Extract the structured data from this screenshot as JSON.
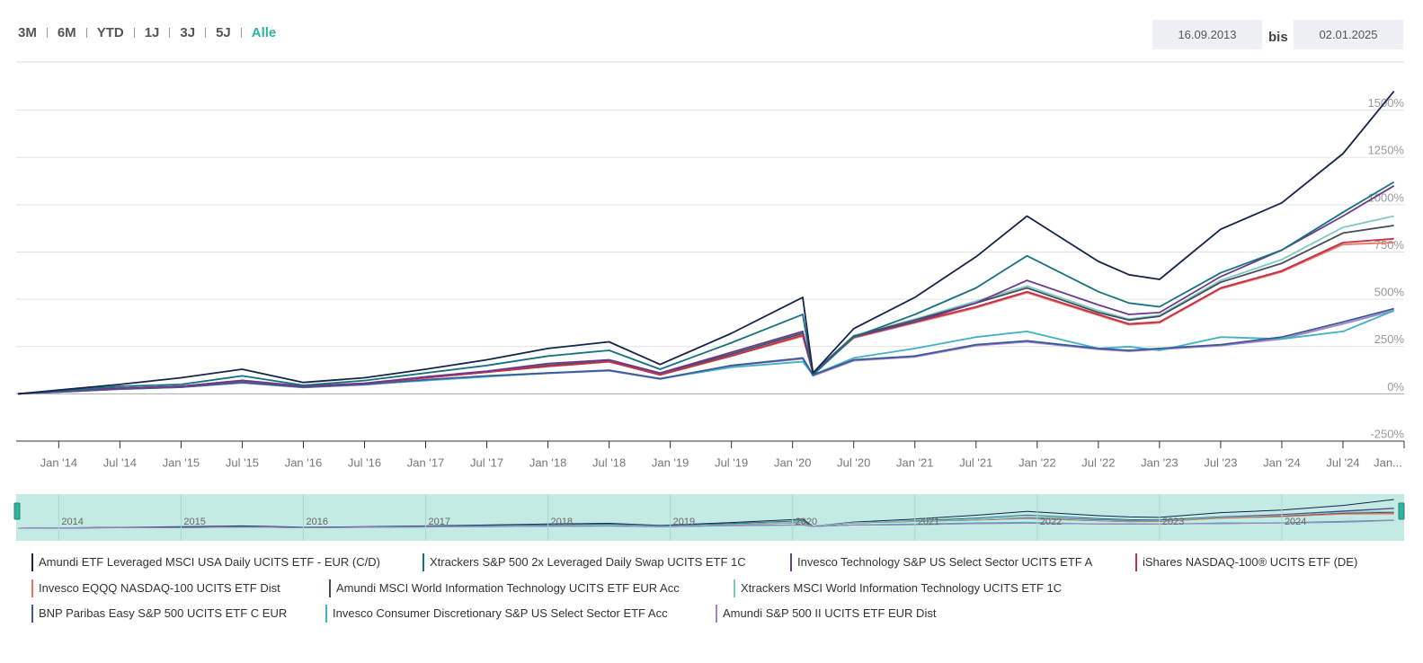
{
  "range_buttons": [
    "3M",
    "6M",
    "YTD",
    "1J",
    "3J",
    "5J",
    "Alle"
  ],
  "active_button": "Alle",
  "date_from": "16.09.2013",
  "date_separator": "bis",
  "date_to": "02.01.2025",
  "chart_data": {
    "type": "line",
    "x": [
      "2013-09",
      "2014-01",
      "2014-07",
      "2015-01",
      "2015-07",
      "2016-01",
      "2016-07",
      "2017-01",
      "2017-07",
      "2018-01",
      "2018-07",
      "2018-12",
      "2019-07",
      "2020-02",
      "2020-03",
      "2020-07",
      "2021-01",
      "2021-07",
      "2021-12",
      "2022-07",
      "2022-10",
      "2023-01",
      "2023-07",
      "2024-01",
      "2024-07",
      "2024-12"
    ],
    "xlim": [
      "2013-09",
      "2025-01"
    ],
    "xticks": [
      {
        "value": "2014-01",
        "label": "Jan '14"
      },
      {
        "value": "2014-07",
        "label": "Jul '14"
      },
      {
        "value": "2015-01",
        "label": "Jan '15"
      },
      {
        "value": "2015-07",
        "label": "Jul '15"
      },
      {
        "value": "2016-01",
        "label": "Jan '16"
      },
      {
        "value": "2016-07",
        "label": "Jul '16"
      },
      {
        "value": "2017-01",
        "label": "Jan '17"
      },
      {
        "value": "2017-07",
        "label": "Jul '17"
      },
      {
        "value": "2018-01",
        "label": "Jan '18"
      },
      {
        "value": "2018-07",
        "label": "Jul '18"
      },
      {
        "value": "2019-01",
        "label": "Jan '19"
      },
      {
        "value": "2019-07",
        "label": "Jul '19"
      },
      {
        "value": "2020-01",
        "label": "Jan '20"
      },
      {
        "value": "2020-07",
        "label": "Jul '20"
      },
      {
        "value": "2021-01",
        "label": "Jan '21"
      },
      {
        "value": "2021-07",
        "label": "Jul '21"
      },
      {
        "value": "2022-01",
        "label": "Jan '22"
      },
      {
        "value": "2022-07",
        "label": "Jul '22"
      },
      {
        "value": "2023-01",
        "label": "Jan '23"
      },
      {
        "value": "2023-07",
        "label": "Jul '23"
      },
      {
        "value": "2024-01",
        "label": "Jan '24"
      },
      {
        "value": "2024-07",
        "label": "Jul '24"
      },
      {
        "value": "2025-01",
        "label": "Jan..."
      }
    ],
    "ylim": [
      -250,
      1750
    ],
    "yticks": [
      {
        "value": -250,
        "label": "-250%"
      },
      {
        "value": 0,
        "label": "0%"
      },
      {
        "value": 250,
        "label": "250%"
      },
      {
        "value": 500,
        "label": "500%"
      },
      {
        "value": 750,
        "label": "750%"
      },
      {
        "value": 1000,
        "label": "1000%"
      },
      {
        "value": 1250,
        "label": "1250%"
      },
      {
        "value": 1500,
        "label": "1500%"
      }
    ],
    "grid": true,
    "navigator_labels": [
      "2014",
      "2015",
      "2016",
      "2017",
      "2018",
      "2019",
      "2020",
      "2021",
      "2022",
      "2023",
      "2024"
    ],
    "series": [
      {
        "name": "Amundi ETF Leveraged MSCI USA Daily UCITS ETF - EUR (C/D)",
        "color": "#15244a",
        "values": [
          0,
          20,
          50,
          85,
          130,
          60,
          85,
          130,
          180,
          240,
          275,
          155,
          320,
          510,
          110,
          345,
          510,
          725,
          940,
          700,
          630,
          605,
          870,
          1010,
          1270,
          1600
        ]
      },
      {
        "name": "Xtrackers S&P 500 2x Leveraged Daily Swap UCITS ETF 1C",
        "color": "#18707f",
        "values": [
          0,
          15,
          40,
          50,
          95,
          45,
          70,
          110,
          150,
          200,
          230,
          130,
          270,
          420,
          100,
          300,
          420,
          560,
          730,
          540,
          480,
          460,
          640,
          760,
          960,
          1120
        ]
      },
      {
        "name": "Invesco Technology S&P US Select Sector UCITS ETF A",
        "color": "#6b3a8c",
        "values": [
          0,
          12,
          30,
          40,
          70,
          40,
          55,
          90,
          120,
          160,
          180,
          110,
          220,
          330,
          110,
          300,
          380,
          480,
          600,
          470,
          420,
          430,
          620,
          760,
          940,
          1100
        ]
      },
      {
        "name": "iShares NASDAQ-100® UCITS ETF (DE)",
        "color": "#c2304c",
        "values": [
          0,
          12,
          30,
          40,
          70,
          40,
          55,
          85,
          115,
          145,
          170,
          100,
          200,
          310,
          110,
          300,
          380,
          460,
          540,
          420,
          370,
          380,
          560,
          650,
          800,
          820
        ]
      },
      {
        "name": "Invesco EQQQ NASDAQ-100 UCITS ETF Dist",
        "color": "#e8745a",
        "values": [
          0,
          12,
          30,
          40,
          70,
          40,
          55,
          85,
          115,
          145,
          170,
          100,
          200,
          305,
          110,
          295,
          375,
          455,
          535,
          415,
          365,
          375,
          555,
          645,
          790,
          800
        ]
      },
      {
        "name": "Amundi MSCI World Information Technology UCITS ETF EUR Acc",
        "color": "#454d5c",
        "values": [
          0,
          12,
          30,
          40,
          70,
          40,
          55,
          85,
          115,
          150,
          175,
          105,
          210,
          320,
          110,
          305,
          390,
          480,
          560,
          430,
          390,
          410,
          590,
          690,
          850,
          890
        ]
      },
      {
        "name": "Xtrackers MSCI World Information Technology UCITS ETF 1C",
        "color": "#7fcac0",
        "values": [
          0,
          12,
          30,
          40,
          72,
          42,
          57,
          88,
          118,
          152,
          178,
          108,
          212,
          325,
          112,
          308,
          395,
          490,
          570,
          440,
          395,
          415,
          600,
          710,
          880,
          940
        ]
      },
      {
        "name": "BNP Paribas Easy S&P 500 UCITS ETF C EUR",
        "color": "#3a5a9a",
        "values": [
          0,
          10,
          25,
          35,
          60,
          35,
          50,
          75,
          95,
          110,
          125,
          80,
          150,
          190,
          100,
          180,
          200,
          260,
          280,
          240,
          230,
          240,
          260,
          300,
          380,
          450
        ]
      },
      {
        "name": "Invesco Consumer Discretionary S&P US Select Sector ETF Acc",
        "color": "#42b1c2",
        "values": [
          0,
          10,
          25,
          35,
          60,
          35,
          50,
          70,
          90,
          110,
          125,
          80,
          140,
          170,
          100,
          190,
          240,
          300,
          330,
          240,
          250,
          230,
          300,
          290,
          330,
          440
        ]
      },
      {
        "name": "Amundi S&P 500 II UCITS ETF EUR Dist",
        "color": "#a282c2",
        "values": [
          0,
          10,
          25,
          35,
          58,
          33,
          48,
          72,
          92,
          108,
          122,
          78,
          148,
          185,
          95,
          175,
          195,
          255,
          275,
          235,
          225,
          235,
          255,
          290,
          370,
          440
        ]
      }
    ]
  }
}
